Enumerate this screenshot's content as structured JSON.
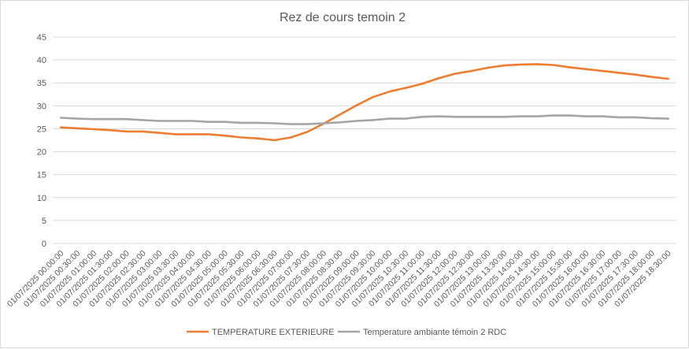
{
  "chart_data": {
    "type": "line",
    "title": "Rez de cours temoin 2",
    "xlabel": "",
    "ylabel": "",
    "ylim": [
      0,
      45
    ],
    "yticks": [
      0,
      5,
      10,
      15,
      20,
      25,
      30,
      35,
      40,
      45
    ],
    "grid": true,
    "legend_position": "bottom",
    "categories": [
      "01/07/2025 00:00:00",
      "01/07/2025 00:30:00",
      "01/07/2025 01:00:00",
      "01/07/2025 01:30:00",
      "01/07/2025 02:00:00",
      "01/07/2025 02:30:00",
      "01/07/2025 03:00:00",
      "01/07/2025 03:30:00",
      "01/07/2025 04:00:00",
      "01/07/2025 04:30:00",
      "01/07/2025 05:00:00",
      "01/07/2025 05:30:00",
      "01/07/2025 06:00:00",
      "01/07/2025 06:30:00",
      "01/07/2025 07:00:00",
      "01/07/2025 07:30:00",
      "01/07/2025 08:00:00",
      "01/07/2025 08:30:00",
      "01/07/2025 09:00:00",
      "01/07/2025 09:30:00",
      "01/07/2025 10:00:00",
      "01/07/2025 10:30:00",
      "01/07/2025 11:00:00",
      "01/07/2025 11:30:00",
      "01/07/2025 12:00:00",
      "01/07/2025 12:30:00",
      "01/07/2025 13:00:00",
      "01/07/2025 13:30:00",
      "01/07/2025 14:00:00",
      "01/07/2025 14:30:00",
      "01/07/2025 15:00:00",
      "01/07/2025 15:30:00",
      "01/07/2025 16:00:00",
      "01/07/2025 16:30:00",
      "01/07/2025 17:00:00",
      "01/07/2025 17:30:00",
      "01/07/2025 18:00:00",
      "01/07/2025 18:30:00"
    ],
    "series": [
      {
        "name": "TEMPERATURE EXTERIEURE",
        "color": "#ED7D31",
        "values": [
          25.3,
          25.1,
          24.9,
          24.7,
          24.4,
          24.4,
          24.1,
          23.8,
          23.8,
          23.8,
          23.5,
          23.1,
          22.9,
          22.5,
          23.1,
          24.3,
          26.1,
          28.1,
          30.1,
          31.9,
          33.1,
          33.9,
          34.8,
          36.0,
          37.0,
          37.6,
          38.3,
          38.8,
          39.0,
          39.1,
          38.9,
          38.4,
          38.0,
          37.6,
          37.2,
          36.8,
          36.3,
          35.9
        ]
      },
      {
        "name": "Temperature ambiante témoin 2 RDC",
        "color": "#A5A5A5",
        "values": [
          27.4,
          27.2,
          27.1,
          27.1,
          27.1,
          26.9,
          26.7,
          26.7,
          26.7,
          26.5,
          26.5,
          26.3,
          26.3,
          26.2,
          26.0,
          26.0,
          26.2,
          26.4,
          26.7,
          26.9,
          27.2,
          27.2,
          27.6,
          27.7,
          27.6,
          27.6,
          27.6,
          27.6,
          27.7,
          27.7,
          27.9,
          27.9,
          27.7,
          27.7,
          27.5,
          27.5,
          27.3,
          27.2
        ]
      }
    ]
  }
}
